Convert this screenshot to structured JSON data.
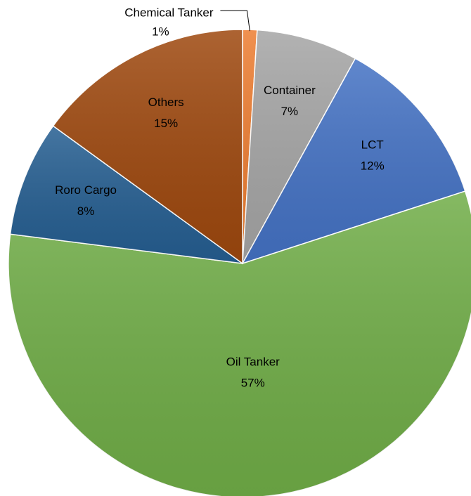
{
  "chart_data": {
    "type": "pie",
    "categories": [
      "Chemical Tanker",
      "Container",
      "LCT",
      "Oil Tanker",
      "Roro Cargo",
      "Others"
    ],
    "values": [
      1,
      7,
      12,
      57,
      8,
      15
    ],
    "value_labels": [
      "1%",
      "7%",
      "12%",
      "57%",
      "8%",
      "15%"
    ],
    "colors": [
      "#ed7d31",
      "#a5a5a5",
      "#4472c4",
      "#70ad47",
      "#255e91",
      "#9e480e"
    ]
  }
}
